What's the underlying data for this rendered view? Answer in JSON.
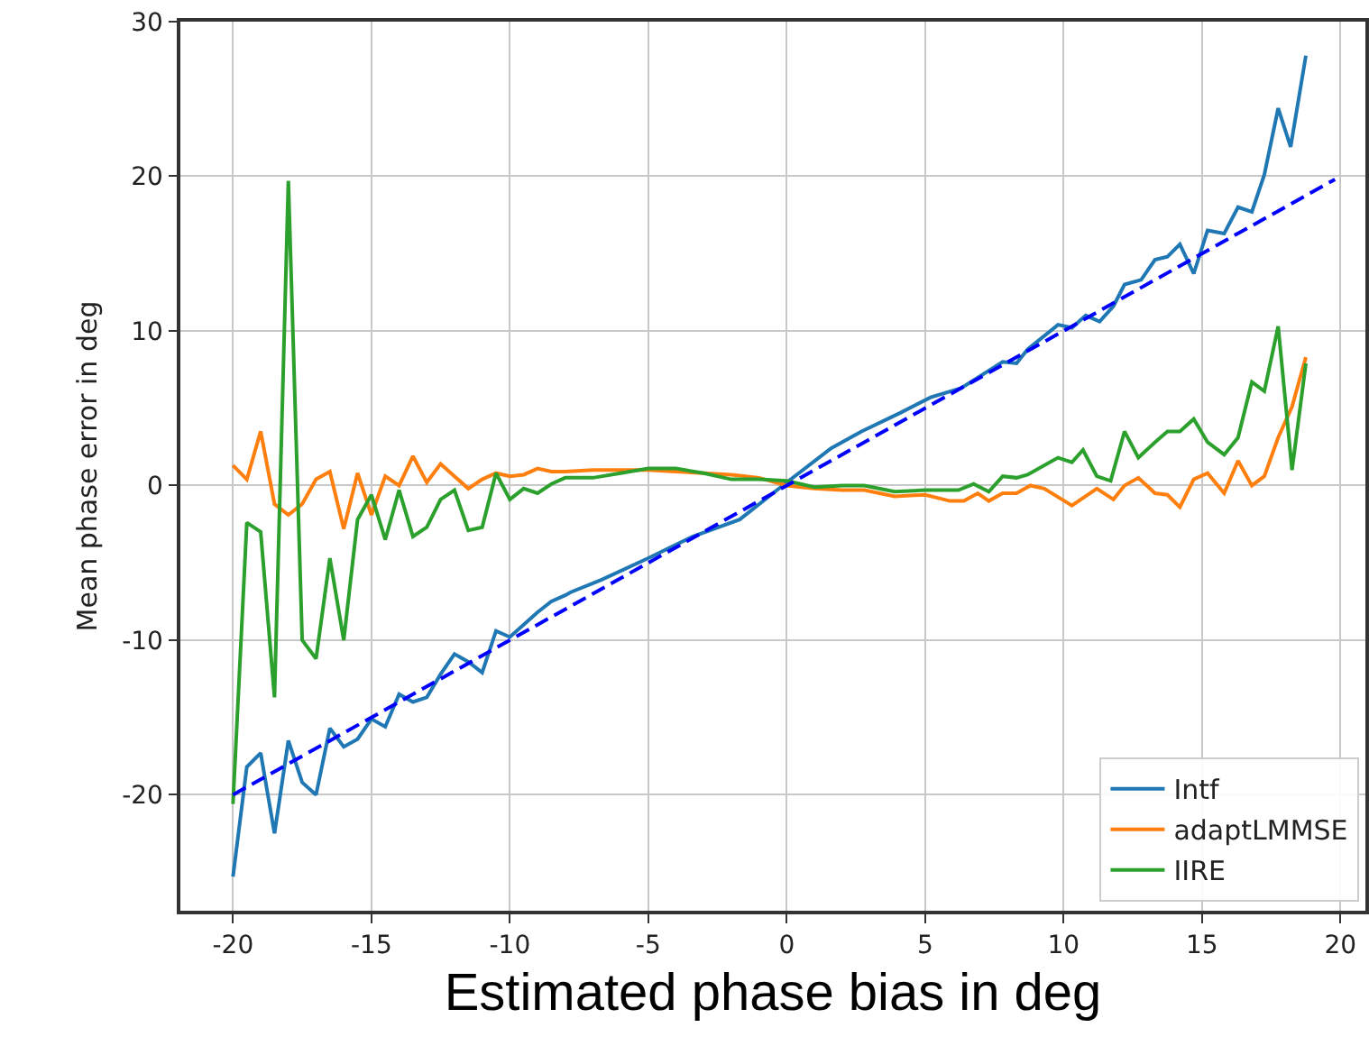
{
  "chart_data": {
    "type": "line",
    "xlabel": "Estimated phase bias in deg",
    "ylabel": "Mean phase error in deg",
    "xlim": [
      -21.9,
      20.9
    ],
    "ylim": [
      -27.5,
      30
    ],
    "xticks": [
      -20,
      -15,
      -10,
      -5,
      0,
      5,
      10,
      15,
      20
    ],
    "yticks": [
      -20,
      -10,
      0,
      10,
      20,
      30
    ],
    "grid": true,
    "legend": "bottom right",
    "marker": "none",
    "line_style": "solid",
    "series": [
      {
        "name": "Intf",
        "color": "#1f77b4",
        "x": [
          -20,
          -19.5,
          -19,
          -18.5,
          -18,
          -17.5,
          -17,
          -16.5,
          -16,
          -15.5,
          -15,
          -14.5,
          -14,
          -13.5,
          -13,
          -12.5,
          -12,
          -11.5,
          -11,
          -10.5,
          -10,
          -9.5,
          -9,
          -8.5,
          -8,
          -7.8,
          -6.7,
          -5,
          -3.4,
          -1.7,
          0,
          1.6,
          2.7,
          4.1,
          5.2,
          6.3,
          7.8,
          8.3,
          8.7,
          9.8,
          10.3,
          10.8,
          11.3,
          11.8,
          12.2,
          12.8,
          13.3,
          13.75,
          14.2,
          14.7,
          15.2,
          15.8,
          16.3,
          16.8,
          17.25,
          17.75,
          18.2,
          18.75
        ],
        "values": [
          -25.3,
          -18.2,
          -17.3,
          -22.5,
          -16.5,
          -19.2,
          -20,
          -15.7,
          -16.9,
          -16.4,
          -15.1,
          -15.6,
          -13.5,
          -14,
          -13.7,
          -12.2,
          -10.9,
          -11.4,
          -12.1,
          -9.4,
          -9.8,
          -9,
          -8.2,
          -7.5,
          -7.1,
          -6.9,
          -6.1,
          -4.7,
          -3.3,
          -2.2,
          0.2,
          2.4,
          3.5,
          4.7,
          5.7,
          6.3,
          8,
          7.9,
          8.8,
          10.4,
          10.2,
          11,
          10.6,
          11.6,
          13,
          13.3,
          14.6,
          14.8,
          15.6,
          13.7,
          16.5,
          16.3,
          18,
          17.7,
          20.1,
          24.4,
          21.9,
          27.8
        ]
      },
      {
        "name": "adaptLMMSE",
        "color": "#ff7f0e",
        "x": [
          -20,
          -19.5,
          -19,
          -18.5,
          -18,
          -17.5,
          -17,
          -16.5,
          -16,
          -15.5,
          -15,
          -14.5,
          -14,
          -13.5,
          -13,
          -12.5,
          -12,
          -11.5,
          -11,
          -10.5,
          -10,
          -9.5,
          -9,
          -8.5,
          -8,
          -7,
          -6,
          -5,
          -4,
          -3,
          -2,
          -1,
          0,
          1,
          2,
          2.8,
          3.9,
          5,
          5.9,
          6.4,
          6.9,
          7.3,
          7.8,
          8.3,
          8.8,
          9.3,
          10.3,
          11.2,
          11.8,
          12.2,
          12.7,
          13.3,
          13.75,
          14.2,
          14.7,
          15.2,
          15.8,
          16.3,
          16.8,
          17.25,
          17.75,
          18.25,
          18.75
        ],
        "values": [
          1.3,
          0.4,
          3.5,
          -1.2,
          -1.9,
          -1.2,
          0.4,
          0.9,
          -2.8,
          0.8,
          -1.9,
          0.6,
          0,
          1.9,
          0.2,
          1.4,
          0.6,
          -0.2,
          0.4,
          0.8,
          0.6,
          0.7,
          1.1,
          0.9,
          0.9,
          1,
          1,
          1,
          0.9,
          0.8,
          0.7,
          0.5,
          0,
          -0.2,
          -0.3,
          -0.3,
          -0.7,
          -0.6,
          -1,
          -1,
          -0.5,
          -1,
          -0.5,
          -0.5,
          0,
          -0.2,
          -1.3,
          -0.2,
          -0.9,
          0,
          0.5,
          -0.5,
          -0.6,
          -1.4,
          0.4,
          0.8,
          -0.5,
          1.6,
          0,
          0.6,
          3.1,
          5.1,
          8.3
        ]
      },
      {
        "name": "IIRE",
        "color": "#2ca02c",
        "x": [
          -20,
          -19.5,
          -19,
          -18.5,
          -18,
          -17.5,
          -17,
          -16.5,
          -16,
          -15.5,
          -15,
          -14.5,
          -14,
          -13.5,
          -13,
          -12.5,
          -12,
          -11.5,
          -11,
          -10.5,
          -10,
          -9.5,
          -9,
          -8.5,
          -8,
          -7,
          -6,
          -5,
          -4,
          -3,
          -2,
          -1,
          0,
          1,
          2,
          2.8,
          3.9,
          5,
          6.2,
          6.75,
          7.3,
          7.8,
          8.3,
          8.7,
          9.8,
          10.3,
          10.7,
          11.2,
          11.7,
          12.2,
          12.7,
          13.3,
          13.75,
          14.2,
          14.7,
          15.2,
          15.8,
          16.3,
          16.8,
          17.25,
          17.75,
          18.25,
          18.75
        ],
        "values": [
          -20.6,
          -2.4,
          -3,
          -13.7,
          19.7,
          -10,
          -11.2,
          -4.7,
          -10,
          -2.2,
          -0.6,
          -3.5,
          -0.3,
          -3.3,
          -2.7,
          -0.9,
          -0.3,
          -2.9,
          -2.7,
          0.8,
          -0.9,
          -0.2,
          -0.5,
          0.1,
          0.5,
          0.5,
          0.8,
          1.1,
          1.1,
          0.8,
          0.4,
          0.4,
          0.3,
          -0.1,
          0,
          0,
          -0.4,
          -0.3,
          -0.3,
          0.1,
          -0.4,
          0.6,
          0.5,
          0.7,
          1.8,
          1.5,
          2.3,
          0.6,
          0.3,
          3.5,
          1.8,
          2.8,
          3.5,
          3.5,
          4.3,
          2.8,
          2,
          3.1,
          6.7,
          6.1,
          10.3,
          1,
          7.9
        ]
      },
      {
        "color": "#0000ff",
        "line_style": "dashed",
        "x": [
          -20,
          19.8
        ],
        "values": [
          -20,
          19.8
        ]
      }
    ]
  }
}
